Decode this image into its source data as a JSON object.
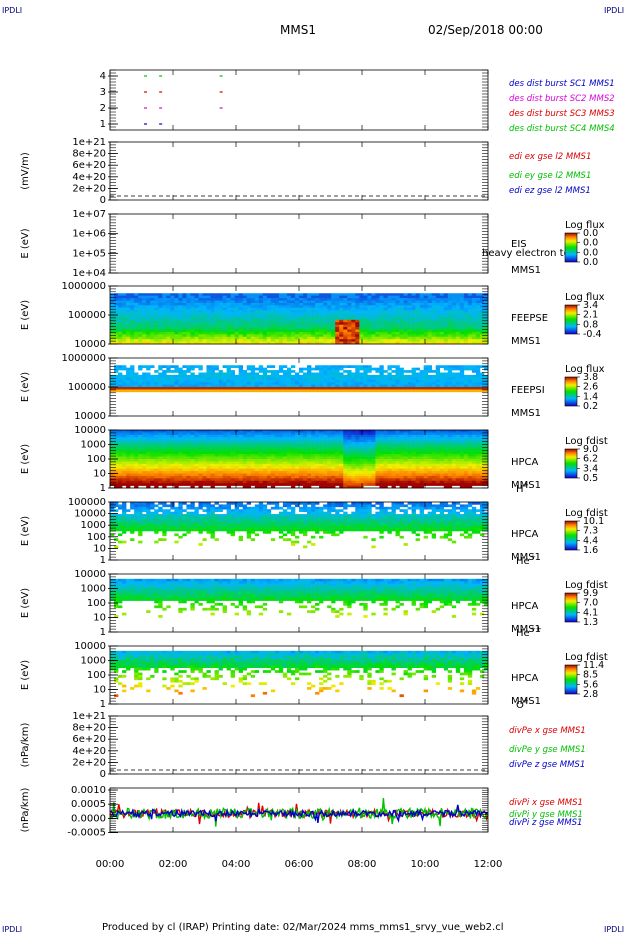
{
  "page": {
    "corner_label": "IPDLI",
    "title_left": "MMS1",
    "title_right": "02/Sep/2018 00:00",
    "footer": "Produced by cl (IRAP)   Printing date: 02/Mar/2024   mms_mms1_srvy_vue_web2.cl"
  },
  "colors": {
    "blue": "#0000c8",
    "magenta": "#dc00dc",
    "red": "#dc0000",
    "green": "#00c000"
  },
  "chart_data": [
    {
      "type": "scatter",
      "name": "burst",
      "ylim": [
        0.5,
        4.5
      ],
      "yticks": [
        "4",
        "3",
        "2",
        "1"
      ],
      "legend": [
        {
          "text": "des dist burst SC1 MMS1",
          "color": "#0000c8"
        },
        {
          "text": "des dist burst SC2 MMS2",
          "color": "#dc00dc"
        },
        {
          "text": "des dist burst SC3 MMS3",
          "color": "#dc0000"
        },
        {
          "text": "des dist burst SC4 MMS4",
          "color": "#00c000"
        }
      ]
    },
    {
      "type": "line",
      "name": "edi",
      "ylabel": "(mV/m)",
      "yticks": [
        "1e+21",
        "8e+20",
        "6e+20",
        "4e+20",
        "2e+20",
        "0"
      ],
      "legend": [
        {
          "text": "edi ex gse l2 MMS1",
          "color": "#dc0000"
        },
        {
          "text": "edi ey gse l2 MMS1",
          "color": "#00c000"
        },
        {
          "text": "edi ez gse l2 MMS1",
          "color": "#0000c8"
        }
      ]
    },
    {
      "type": "heatmap",
      "name": "eis",
      "ylabel": "E (eV)",
      "yticks": [
        "1e+07",
        "1e+06",
        "1e+05",
        "1e+04"
      ],
      "label_lines": [
        "EIS",
        "MMS1"
      ],
      "overlay_text": "heavy electron to",
      "colorbar": {
        "title": "Log flux",
        "ticks": [
          "0.0",
          "0.0",
          "0.0",
          "0.0"
        ]
      }
    },
    {
      "type": "heatmap",
      "name": "feeps_e",
      "ylabel": "E (eV)",
      "yticks": [
        "1000000",
        "100000",
        "10000"
      ],
      "label_lines": [
        "FEEPSE",
        "MMS1"
      ],
      "colorbar": {
        "title": "Log flux",
        "ticks": [
          "3.4",
          "2.1",
          "0.8",
          "-0.4"
        ]
      }
    },
    {
      "type": "heatmap",
      "name": "feeps_i",
      "ylabel": "E (eV)",
      "yticks": [
        "1000000",
        "100000",
        "10000"
      ],
      "label_lines": [
        "FEEPSI",
        "MMS1"
      ],
      "colorbar": {
        "title": "Log flux",
        "ticks": [
          "3.8",
          "2.6",
          "1.4",
          "0.2"
        ]
      }
    },
    {
      "type": "heatmap",
      "name": "hpca_h",
      "ylabel": "E (eV)",
      "yticks": [
        "10000",
        "1000",
        "100",
        "10",
        "1"
      ],
      "label_lines": [
        "HPCA",
        "MMS1"
      ],
      "species": "H",
      "species_charge": "+",
      "colorbar": {
        "title": "Log fdist",
        "ticks": [
          "9.0",
          "6.2",
          "3.4",
          "0.5"
        ]
      }
    },
    {
      "type": "heatmap",
      "name": "hpca_he1",
      "ylabel": "E (eV)",
      "yticks": [
        "100000",
        "10000",
        "1000",
        "100",
        "10",
        "1"
      ],
      "label_lines": [
        "HPCA",
        "MMS1"
      ],
      "species": "He",
      "species_charge": "+",
      "colorbar": {
        "title": "Log fdist",
        "ticks": [
          "10.1",
          "7.3",
          "4.4",
          "1.6"
        ]
      }
    },
    {
      "type": "heatmap",
      "name": "hpca_he2",
      "ylabel": "E (eV)",
      "yticks": [
        "10000",
        "1000",
        "100",
        "10",
        "1"
      ],
      "label_lines": [
        "HPCA",
        "MMS1"
      ],
      "species": "He",
      "species_charge": "++",
      "colorbar": {
        "title": "Log fdist",
        "ticks": [
          "9.9",
          "7.0",
          "4.1",
          "1.3"
        ]
      }
    },
    {
      "type": "heatmap",
      "name": "hpca_o",
      "ylabel": "E (eV)",
      "yticks": [
        "10000",
        "1000",
        "100",
        "10",
        "1"
      ],
      "label_lines": [
        "HPCA",
        "MMS1"
      ],
      "species": "O",
      "species_charge": "+",
      "colorbar": {
        "title": "Log fdist",
        "ticks": [
          "11.4",
          "8.5",
          "5.6",
          "2.8"
        ]
      }
    },
    {
      "type": "line",
      "name": "divpe",
      "ylabel": "(nPa/km)",
      "yticks": [
        "1e+21",
        "8e+20",
        "6e+20",
        "4e+20",
        "2e+20",
        "0"
      ],
      "legend": [
        {
          "text": "divPe x gse MMS1",
          "color": "#dc0000"
        },
        {
          "text": "divPe y gse MMS1",
          "color": "#00c000"
        },
        {
          "text": "divPe z gse MMS1",
          "color": "#0000c8"
        }
      ]
    },
    {
      "type": "line",
      "name": "divpi",
      "ylabel": "(nPa/km)",
      "ylim": [
        -0.0008,
        0.0011
      ],
      "yticks": [
        "0.0010",
        "0.0005",
        "0.0000",
        "-0.0005"
      ],
      "legend": [
        {
          "text": "divPi x gse MMS1",
          "color": "#dc0000"
        },
        {
          "text": "divPi y gse MMS1",
          "color": "#00c000"
        },
        {
          "text": "divPi z gse MMS1",
          "color": "#0000c8"
        }
      ]
    }
  ],
  "xaxis": {
    "ticks": [
      "00:00",
      "02:00",
      "04:00",
      "06:00",
      "08:00",
      "10:00",
      "12:00"
    ],
    "xlim_hours": [
      0,
      12
    ]
  }
}
